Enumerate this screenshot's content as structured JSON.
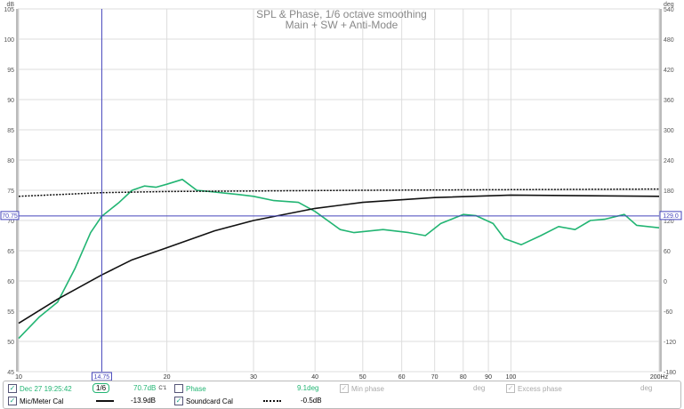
{
  "chart_data": {
    "type": "line",
    "title": "SPL & Phase, 1/6 octave smoothing",
    "subtitle": "Main + SW + Anti-Mode",
    "xlabel": "Hz",
    "ylabel": "dB",
    "y2label": "deg",
    "xscale": "log",
    "xlim": [
      10,
      200
    ],
    "ylim": [
      45,
      105
    ],
    "y2lim": [
      -180,
      540
    ],
    "x_ticks": [
      10,
      20,
      30,
      40,
      50,
      60,
      70,
      80,
      90,
      100,
      200
    ],
    "x_tick_labels": [
      "10",
      "20",
      "30",
      "40",
      "50",
      "60",
      "70",
      "80",
      "90",
      "100",
      "200Hz"
    ],
    "y_ticks": [
      45,
      50,
      55,
      60,
      65,
      70,
      75,
      80,
      85,
      90,
      95,
      100,
      105
    ],
    "y2_ticks": [
      -180,
      -120,
      -60,
      0,
      60,
      120,
      180,
      240,
      300,
      360,
      420,
      480,
      540
    ],
    "grid": true,
    "cursor": {
      "x": 14.75,
      "x_label": "14.75",
      "y": 70.75,
      "y_label": "70.75",
      "y2_label": "129.0"
    },
    "series": [
      {
        "name": "Dec 27 19:25:42",
        "color": "#22b573",
        "style": "solid",
        "x": [
          10,
          11,
          12,
          13,
          14,
          14.75,
          16,
          17,
          18,
          19,
          20,
          21.5,
          23,
          25,
          28,
          30,
          33,
          37,
          40,
          45,
          48,
          55,
          62,
          67,
          72,
          80,
          85,
          92,
          97,
          105,
          115,
          125,
          135,
          145,
          155,
          170,
          180,
          200
        ],
        "y": [
          50.5,
          54,
          56.5,
          62,
          68,
          70.7,
          73,
          75,
          75.7,
          75.5,
          76,
          76.8,
          75,
          74.7,
          74.3,
          74,
          73.3,
          73,
          71.5,
          68.5,
          68,
          68.5,
          68,
          67.5,
          69.5,
          71,
          70.8,
          69.5,
          67,
          66,
          67.5,
          69,
          68.5,
          70,
          70.2,
          71,
          69.2,
          68.8
        ]
      },
      {
        "name": "Mic/Meter Cal",
        "color": "#111111",
        "style": "solid",
        "x": [
          10,
          12,
          14.75,
          17,
          20,
          25,
          30,
          40,
          50,
          70,
          100,
          200
        ],
        "y": [
          53,
          57,
          61,
          63.5,
          65.5,
          68.3,
          70,
          72,
          73,
          73.8,
          74.2,
          74
        ]
      },
      {
        "name": "Soundcard Cal",
        "color": "#111111",
        "style": "dotted",
        "x": [
          10,
          14.75,
          20,
          50,
          200
        ],
        "y": [
          74,
          74.6,
          74.8,
          75,
          75.2
        ]
      }
    ]
  },
  "legend": {
    "row1": {
      "name": "Dec 27 19:25:42",
      "smoothing": "1/6",
      "value": "70.7dB",
      "value_sup": "C'1",
      "phase_label": "Phase",
      "phase_value": "9.1deg",
      "min_phase_label": "Min phase",
      "min_phase_unit": "deg",
      "excess_phase_label": "Excess phase",
      "excess_phase_unit": "deg"
    },
    "row2": {
      "mic_label": "Mic/Meter Cal",
      "mic_value": "-13.9dB",
      "sc_label": "Soundcard Cal",
      "sc_value": "-0.5dB"
    },
    "check": "✓"
  }
}
